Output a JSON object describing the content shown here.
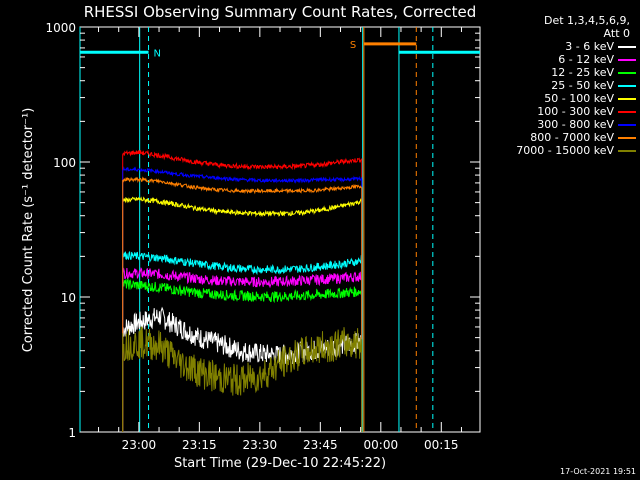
{
  "chart_data": {
    "type": "line",
    "title": "RHESSI Observing Summary Count Rates, Corrected",
    "xlabel": "Start Time (29-Dec-10 22:45:22)",
    "ylabel": "Corrected Count Rate (s⁻¹ detector⁻¹)",
    "yscale": "log",
    "ylim": [
      1,
      1000
    ],
    "xlim_minutes": [
      -14.6,
      84.6
    ],
    "x_unit": "minutes after 23:00",
    "xticks": [
      {
        "value": 0,
        "label": "23:00"
      },
      {
        "value": 15,
        "label": "23:15"
      },
      {
        "value": 30,
        "label": "23:30"
      },
      {
        "value": 45,
        "label": "23:45"
      },
      {
        "value": 60,
        "label": "00:00"
      },
      {
        "value": 75,
        "label": "00:15"
      }
    ],
    "yticks": [
      {
        "value": 1,
        "label": "1"
      },
      {
        "value": 10,
        "label": "10"
      },
      {
        "value": 100,
        "label": "100"
      },
      {
        "value": 1000,
        "label": "1000"
      }
    ],
    "grid": false,
    "legend_header": [
      "Det 1,3,4,5,6,9,",
      "Att 0"
    ],
    "legend_position": "right",
    "x_samples": [
      -4,
      0,
      5,
      10,
      15,
      20,
      25,
      30,
      35,
      40,
      45,
      50,
      55,
      55.3
    ],
    "series": [
      {
        "name": "3 - 6 keV",
        "color": "#ffffff",
        "values": [
          5.8,
          6.5,
          7.2,
          6.0,
          5.0,
          4.5,
          4.0,
          3.8,
          3.7,
          3.9,
          4.1,
          4.4,
          4.6,
          4.6
        ]
      },
      {
        "name": "6 - 12 keV",
        "color": "#ff00ff",
        "values": [
          15,
          15,
          14.8,
          14.2,
          13.6,
          13.2,
          13.0,
          12.9,
          13.0,
          13.2,
          13.5,
          13.8,
          14.2,
          14.3
        ]
      },
      {
        "name": "12 - 25 keV",
        "color": "#00ff00",
        "values": [
          12.5,
          12.2,
          11.8,
          11.2,
          10.7,
          10.4,
          10.2,
          10.1,
          10.1,
          10.2,
          10.4,
          10.7,
          11.0,
          11.0
        ]
      },
      {
        "name": "25 - 50 keV",
        "color": "#00ffff",
        "values": [
          20.5,
          20,
          19.5,
          18.5,
          17.5,
          16.8,
          16.2,
          16.0,
          16.0,
          16.2,
          16.8,
          17.5,
          18.5,
          21
        ]
      },
      {
        "name": "50 - 100 keV",
        "color": "#ffff00",
        "values": [
          52,
          53,
          51,
          48,
          45,
          43,
          42,
          41.5,
          41.5,
          42,
          44,
          47,
          51,
          52
        ]
      },
      {
        "name": "100 - 300 keV",
        "color": "#ff0000",
        "values": [
          115,
          118,
          112,
          105,
          99,
          95,
          93,
          92,
          92,
          93,
          96,
          100,
          104,
          104
        ]
      },
      {
        "name": "300 - 800 keV",
        "color": "#0000ff",
        "values": [
          88,
          88,
          85,
          81,
          78,
          76,
          74,
          73,
          73,
          73,
          74,
          74,
          75,
          75
        ]
      },
      {
        "name": "800 - 7000 keV",
        "color": "#ff8000",
        "values": [
          74,
          74,
          72,
          68,
          64,
          62,
          61,
          61,
          61,
          61,
          62,
          64,
          66,
          66
        ]
      },
      {
        "name": "7000 - 15000 keV",
        "color": "#808000",
        "values": [
          4.4,
          4.6,
          4.4,
          3.3,
          2.8,
          2.5,
          2.4,
          2.6,
          3.2,
          3.8,
          4.2,
          4.5,
          4.6,
          4.6
        ]
      }
    ],
    "flags": [
      {
        "label": "N",
        "color": "#00ffff",
        "level": 650,
        "bar_x": [
          -14.6,
          2.4
        ]
      },
      {
        "label": "",
        "color": "#00ffff",
        "level": 650,
        "bar_x": [
          64.5,
          84.6
        ]
      },
      {
        "label": "S",
        "color": "#ff8000",
        "level": 750,
        "bar_x": [
          55.8,
          68.8
        ]
      }
    ],
    "markers": [
      {
        "x": -14.6,
        "color": "#00ffff",
        "style": "solid"
      },
      {
        "x": 0.2,
        "color": "#00ffff",
        "style": "solid"
      },
      {
        "x": 2.4,
        "color": "#00ffff",
        "style": "dashed"
      },
      {
        "x": 55.5,
        "color": "#00ffff",
        "style": "solid"
      },
      {
        "x": 55.8,
        "color": "#ff8000",
        "style": "solid"
      },
      {
        "x": 64.5,
        "color": "#00ffff",
        "style": "solid"
      },
      {
        "x": 68.8,
        "color": "#ff8000",
        "style": "dashed"
      },
      {
        "x": 72.9,
        "color": "#00ffff",
        "style": "dashed"
      }
    ]
  },
  "timestamp": "17-Oct-2021 19:51"
}
